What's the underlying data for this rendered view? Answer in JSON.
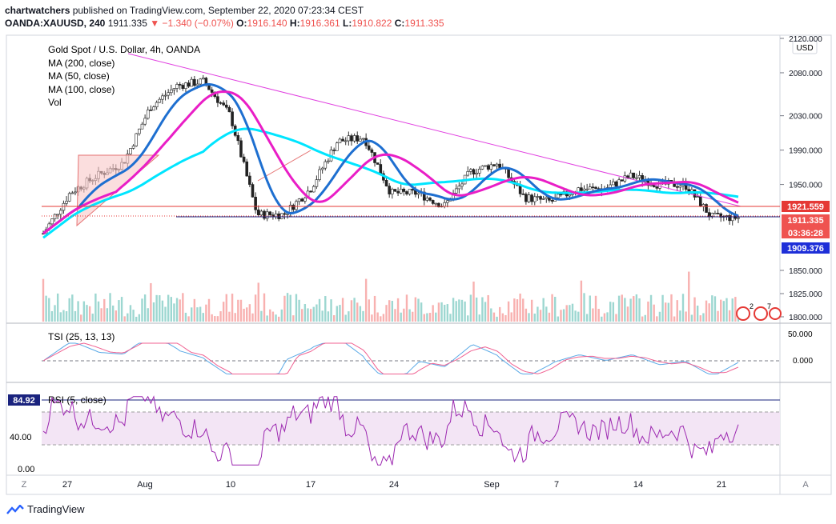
{
  "header": {
    "line1_user": "chartwatchers",
    "line1_rest": " published on TradingView.com, September 22, 2020 07:23:34 CEST",
    "symbol": "OANDA:XAUUSD, 240",
    "last": "1911.335",
    "change": "▼ −1.340 (−0.07%)",
    "o_label": "O:",
    "o_val": "1916.140",
    "h_label": "H:",
    "h_val": "1916.361",
    "l_label": "L:",
    "l_val": "1910.822",
    "c_label": "C:",
    "c_val": "1911.335"
  },
  "legend": {
    "title": "Gold Spot / U.S. Dollar, 4h, OANDA",
    "items": [
      "MA (200, close)",
      "MA (50, close)",
      "MA (100, close)",
      "Vol"
    ]
  },
  "currency": "USD",
  "price_tags": {
    "resistance": "1921.559",
    "last": "1911.335",
    "countdown": "03:36:28",
    "support": "1909.376"
  },
  "colors": {
    "up": "#26a69a",
    "down": "#ef5350",
    "ma200": "#00e5ff",
    "ma50": "#1e6fd0",
    "ma100": "#e91ec6",
    "trend": "#e040e0",
    "resistance": "#e53935",
    "support": "#1a237e",
    "tsi": "#5aa9e6",
    "tsi_signal": "#f06292",
    "rsi": "#9c27b0",
    "rsi_band": "#f3e5f5",
    "rsi_tag": "#1a237e"
  },
  "tsi_label": "TSI (25, 13, 13)",
  "tsi_axis": [
    "50.000",
    "0.000"
  ],
  "rsi_label": "RSI (5, close)",
  "rsi_tag": "84.92",
  "rsi_axis": [
    "40.00",
    "0.00"
  ],
  "x_ticks": [
    "27",
    "Aug",
    "10",
    "17",
    "24",
    "Sep",
    "7",
    "14",
    "21"
  ],
  "bottom_left": "Z",
  "bottom_right": "A",
  "brand": "TradingView",
  "event_badges": [
    "2",
    "7"
  ],
  "chart_data": {
    "type": "candlestick",
    "title": "Gold Spot / U.S. Dollar, 4h, OANDA",
    "y_ticks": [
      2120,
      2080,
      2030,
      1990,
      1950,
      1850,
      1825,
      1800
    ],
    "y_tick_labels": [
      "2120.000",
      "2080.000",
      "2030.000",
      "1990.000",
      "1950.000",
      "1850.000",
      "1825.000",
      "1800.000"
    ],
    "x_ticks": [
      "27",
      "Aug",
      "10",
      "17",
      "24",
      "Sep",
      "7",
      "14",
      "21"
    ],
    "ohlc_approx": [
      {
        "date": "Jul 24",
        "close": 1893
      },
      {
        "date": "Jul 27",
        "close": 1940
      },
      {
        "date": "Jul 29",
        "close": 1960
      },
      {
        "date": "Aug 3",
        "close": 1975
      },
      {
        "date": "Aug 5",
        "close": 2040
      },
      {
        "date": "Aug 6",
        "close": 2065
      },
      {
        "date": "Aug 7",
        "close": 2070
      },
      {
        "date": "Aug 10",
        "close": 2030
      },
      {
        "date": "Aug 11",
        "close": 1915
      },
      {
        "date": "Aug 12",
        "close": 1915
      },
      {
        "date": "Aug 14",
        "close": 1945
      },
      {
        "date": "Aug 18",
        "close": 2000
      },
      {
        "date": "Aug 19",
        "close": 2005
      },
      {
        "date": "Aug 21",
        "close": 1940
      },
      {
        "date": "Aug 24",
        "close": 1940
      },
      {
        "date": "Aug 27",
        "close": 1925
      },
      {
        "date": "Aug 31",
        "close": 1965
      },
      {
        "date": "Sep 1",
        "close": 1975
      },
      {
        "date": "Sep 3",
        "close": 1935
      },
      {
        "date": "Sep 7",
        "close": 1930
      },
      {
        "date": "Sep 9",
        "close": 1945
      },
      {
        "date": "Sep 11",
        "close": 1945
      },
      {
        "date": "Sep 15",
        "close": 1960
      },
      {
        "date": "Sep 17",
        "close": 1950
      },
      {
        "date": "Sep 18",
        "close": 1950
      },
      {
        "date": "Sep 21",
        "close": 1912
      },
      {
        "date": "Sep 22",
        "close": 1911.335
      }
    ],
    "resistance_level": 1921.559,
    "support_level": 1909.376,
    "last_close": 1911.335
  }
}
